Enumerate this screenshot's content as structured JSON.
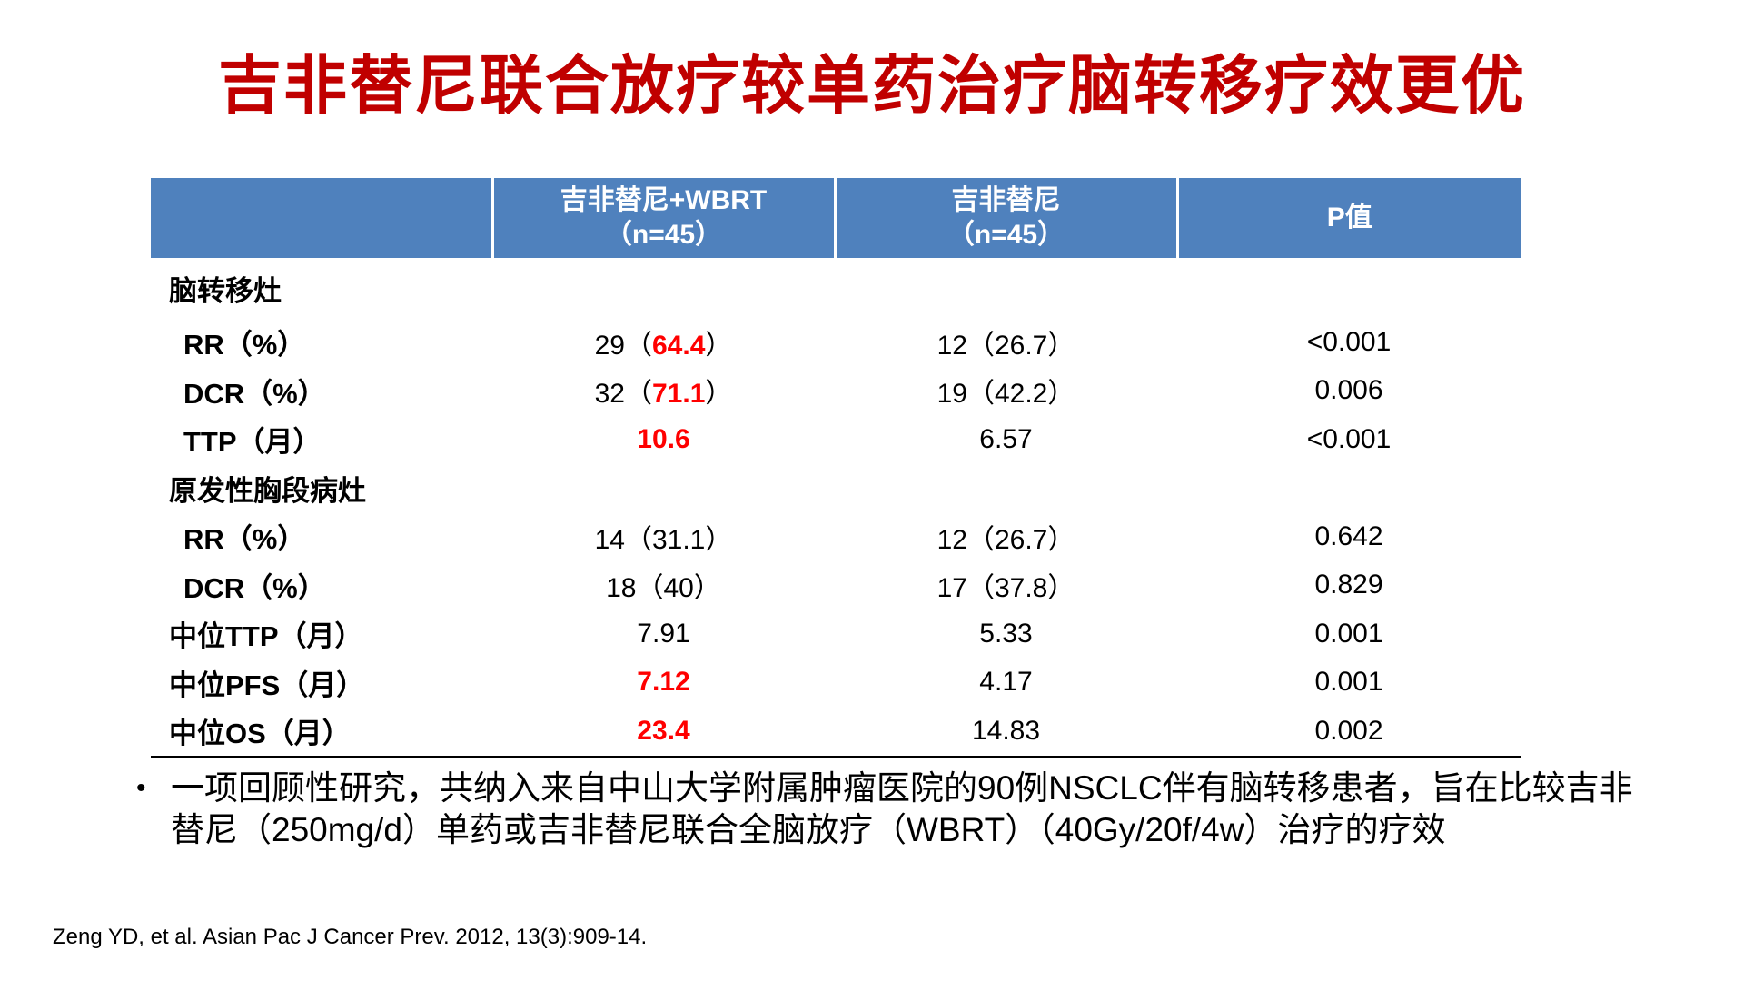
{
  "title": "吉非替尼联合放疗较单药治疗脑转移疗效更优",
  "table": {
    "headers": [
      {
        "line1": "",
        "line2": ""
      },
      {
        "line1": "吉非替尼+WBRT",
        "line2": "（n=45）"
      },
      {
        "line1": "吉非替尼",
        "line2": "（n=45）"
      },
      {
        "line1": "P值",
        "line2": ""
      }
    ],
    "rows": [
      {
        "label": "脑转移灶",
        "kind": "section",
        "c1": {
          "a": "",
          "hl": "",
          "b": "",
          "bold": ""
        },
        "c2": "",
        "c3": ""
      },
      {
        "label": "RR（%）",
        "kind": "sub",
        "c1": {
          "a": "29（",
          "hl": "64.4",
          "b": "）",
          "bold": ""
        },
        "c2": "12（26.7）",
        "c3": "<0.001"
      },
      {
        "label": "DCR（%）",
        "kind": "sub",
        "c1": {
          "a": "32（",
          "hl": "71.1",
          "b": "）",
          "bold": ""
        },
        "c2": "19（42.2）",
        "c3": "0.006"
      },
      {
        "label": "TTP（月）",
        "kind": "sub",
        "c1": {
          "a": "",
          "hl": "",
          "b": "",
          "bold": "10.6"
        },
        "c2": "6.57",
        "c3": "<0.001"
      },
      {
        "label": "原发性胸段病灶",
        "kind": "section",
        "c1": {
          "a": "",
          "hl": "",
          "b": "",
          "bold": ""
        },
        "c2": "",
        "c3": ""
      },
      {
        "label": "RR（%）",
        "kind": "sub",
        "c1": {
          "a": "14（31.1）",
          "hl": "",
          "b": "",
          "bold": ""
        },
        "c2": "12（26.7）",
        "c3": "0.642"
      },
      {
        "label": "DCR（%）",
        "kind": "sub",
        "c1": {
          "a": "18（40）",
          "hl": "",
          "b": "",
          "bold": ""
        },
        "c2": "17（37.8）",
        "c3": "0.829"
      },
      {
        "label": "中位TTP（月）",
        "kind": "section",
        "c1": {
          "a": "7.91",
          "hl": "",
          "b": "",
          "bold": ""
        },
        "c2": "5.33",
        "c3": "0.001"
      },
      {
        "label": "中位PFS（月）",
        "kind": "section",
        "c1": {
          "a": "",
          "hl": "",
          "b": "",
          "bold": "7.12"
        },
        "c2": "4.17",
        "c3": "0.001"
      },
      {
        "label": "中位OS（月）",
        "kind": "section",
        "c1": {
          "a": "",
          "hl": "",
          "b": "",
          "bold": "23.4"
        },
        "c2": "14.83",
        "c3": "0.002"
      }
    ]
  },
  "bullet": {
    "marker": "•",
    "text": "一项回顾性研究，共纳入来自中山大学附属肿瘤医院的90例NSCLC伴有脑转移患者，旨在比较吉非替尼（250mg/d）单药或吉非替尼联合全脑放疗（WBRT）（40Gy/20f/4w）治疗的疗效"
  },
  "reference": "Zeng YD, et al. Asian Pac J Cancer Prev. 2012, 13(3):909-14.",
  "colors": {
    "title": "#c00000",
    "header_bg": "#4f81bd",
    "highlight": "#ff0000"
  }
}
